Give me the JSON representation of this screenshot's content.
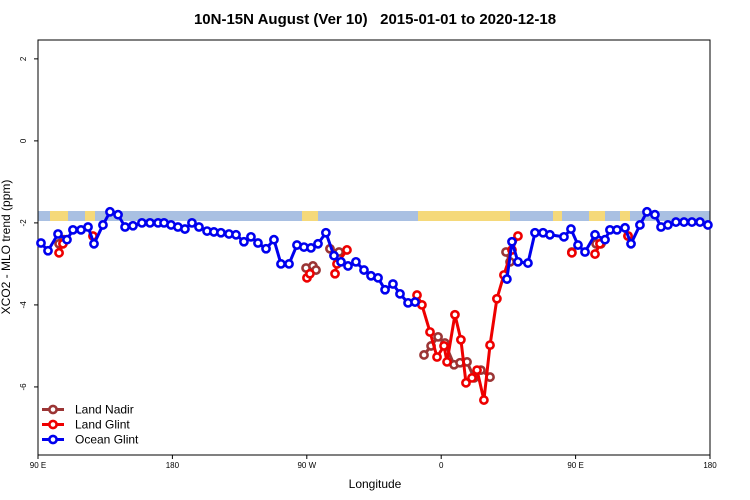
{
  "chart_data": {
    "type": "line",
    "title": "10N-15N August (Ver 10)   2015-01-01 to 2020-12-18",
    "x_label": "Longitude",
    "y_label": "XCO2 - MLO trend (ppm)",
    "xlim": [
      90,
      540
    ],
    "ylim": [
      -7.66,
      2.46
    ],
    "xticks": [
      {
        "value": 90,
        "label": "90 E"
      },
      180,
      {
        "value": 270,
        "label": "90 W"
      },
      {
        "value": 360,
        "label": "0"
      },
      {
        "value": 450,
        "label": "90 E"
      },
      {
        "value": 540,
        "label": "180"
      }
    ],
    "yticks": [
      -6,
      -4,
      -2,
      0,
      2
    ],
    "legend": "bottomleft",
    "series": [
      {
        "name": "Land Nadir",
        "color": "#9b3535",
        "x": [
          104.1,
          107.4,
          null,
          269.5,
          274.1,
          276.2,
          null,
          285.5,
          291.6,
          null,
          348.5,
          353.2,
          357.9,
          362.5,
          368.6,
          372.6,
          377.3,
          382.0,
          386.6,
          392.7,
          null,
          403.4,
          406.1,
          null,
          447.5,
          null,
          463.7,
          467.0,
          null,
          485.1
        ],
        "values": [
          -2.51,
          -2.41,
          null,
          -3.1,
          -3.05,
          -3.15,
          null,
          -2.63,
          -2.71,
          null,
          -5.22,
          -5.0,
          -4.78,
          -4.93,
          -5.46,
          -5.41,
          -5.39,
          -5.78,
          -5.59,
          -5.76,
          null,
          -2.71,
          -2.95,
          null,
          -2.71,
          null,
          -2.51,
          -2.51,
          null,
          -2.32
        ]
      },
      {
        "name": "Land Glint",
        "color": "#ee0000",
        "x": [
          104.1,
          106.7,
          null,
          126.8,
          null,
          270.1,
          272.1,
          null,
          288.9,
          290.2,
          296.9,
          null,
          343.8,
          347.1,
          352.5,
          357.2,
          361.9,
          363.9,
          369.2,
          373.2,
          376.6,
          380.6,
          384.0,
          388.6,
          392.7,
          397.3,
          402.0,
          407.4,
          411.4,
          null,
          447.5,
          null,
          463.0,
          466.3,
          null,
          485.1
        ],
        "values": [
          -2.73,
          -2.51,
          null,
          -2.32,
          null,
          -3.34,
          -3.24,
          null,
          -3.24,
          -3.0,
          -2.66,
          null,
          -3.76,
          -4.0,
          -4.66,
          -5.27,
          -5.0,
          -5.39,
          -4.24,
          -4.85,
          -5.9,
          -5.78,
          -5.59,
          -6.32,
          -4.98,
          -3.85,
          -3.27,
          -2.66,
          -2.32,
          null,
          -2.73,
          null,
          -2.76,
          -2.51,
          null,
          -2.32
        ]
      },
      {
        "name": "Ocean Glint",
        "color": "#0000ee",
        "x": [
          92.0,
          96.7,
          103.4,
          109.4,
          113.4,
          118.8,
          123.5,
          127.5,
          133.5,
          138.2,
          143.6,
          148.3,
          153.6,
          159.6,
          165.0,
          170.4,
          174.4,
          179.1,
          183.7,
          188.4,
          193.1,
          197.8,
          203.2,
          207.8,
          212.5,
          217.9,
          222.6,
          227.9,
          232.6,
          237.3,
          242.7,
          248.0,
          252.7,
          258.1,
          263.4,
          268.1,
          272.8,
          277.5,
          282.8,
          288.2,
          292.9,
          297.6,
          302.9,
          308.3,
          313.0,
          317.7,
          322.4,
          327.7,
          332.4,
          337.8,
          342.5,
          null,
          404.0,
          407.4,
          411.4,
          418.1,
          422.8,
          428.2,
          432.8,
          442.2,
          446.9,
          451.6,
          456.3,
          463.0,
          469.7,
          473.0,
          477.7,
          483.1,
          487.1,
          493.1,
          497.8,
          503.1,
          507.2,
          511.8,
          517.2,
          522.6,
          527.9,
          533.3,
          538.6
        ],
        "values": [
          -2.49,
          -2.68,
          -2.27,
          -2.41,
          -2.17,
          -2.17,
          -2.1,
          -2.51,
          -2.05,
          -1.73,
          -1.8,
          -2.1,
          -2.07,
          -2.0,
          -2.0,
          -2.0,
          -2.0,
          -2.05,
          -2.1,
          -2.15,
          -2.0,
          -2.1,
          -2.2,
          -2.22,
          -2.24,
          -2.27,
          -2.29,
          -2.46,
          -2.34,
          -2.49,
          -2.63,
          -2.41,
          -3.0,
          -3.0,
          -2.54,
          -2.59,
          -2.61,
          -2.51,
          -2.24,
          -2.8,
          -2.95,
          -3.05,
          -2.95,
          -3.15,
          -3.29,
          -3.34,
          -3.63,
          -3.49,
          -3.73,
          -3.95,
          -3.93,
          null,
          -3.37,
          -2.46,
          -2.95,
          -2.98,
          -2.24,
          -2.24,
          -2.29,
          -2.34,
          -2.15,
          -2.54,
          -2.71,
          -2.29,
          -2.41,
          -2.17,
          -2.17,
          -2.12,
          -2.51,
          -2.05,
          -1.73,
          -1.8,
          -2.1,
          -2.05,
          -1.98,
          -1.98,
          -1.98,
          -1.98,
          -2.05
        ]
      }
    ]
  }
}
